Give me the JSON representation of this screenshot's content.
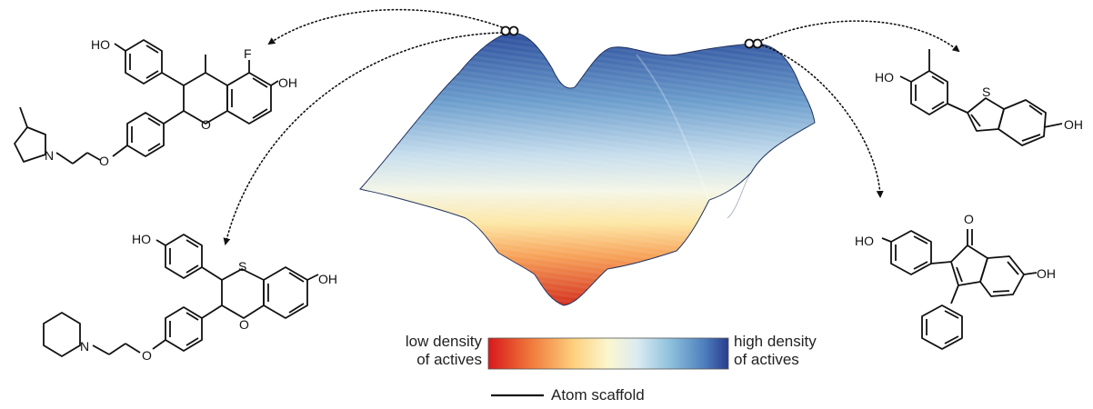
{
  "legend": {
    "low_line1": "low density",
    "low_line2": "of actives",
    "high_line1": "high density",
    "high_line2": "of actives",
    "scaffold_label": "Atom scaffold",
    "gradient_colors": [
      "#d7191c",
      "#f07a3c",
      "#fdd27f",
      "#fbf7cf",
      "#dcebf1",
      "#8cc0dc",
      "#4f7fbd",
      "#283c8f"
    ]
  },
  "surface": {
    "top_color": "#2f54a3",
    "bottom_color": "#d7301f"
  },
  "atoms": {
    "top_left": {
      "ho": "HO",
      "f": "F",
      "oh": "OH",
      "o": "O",
      "n": "N"
    },
    "bottom_left": {
      "ho": "HO",
      "s": "S",
      "oh": "OH",
      "o_ring": "O",
      "o_link": "O",
      "n": "N"
    },
    "top_right": {
      "ho": "HO",
      "s": "S",
      "oh": "OH"
    },
    "bottom_right": {
      "ho": "HO",
      "o": "O",
      "oh": "OH"
    }
  }
}
